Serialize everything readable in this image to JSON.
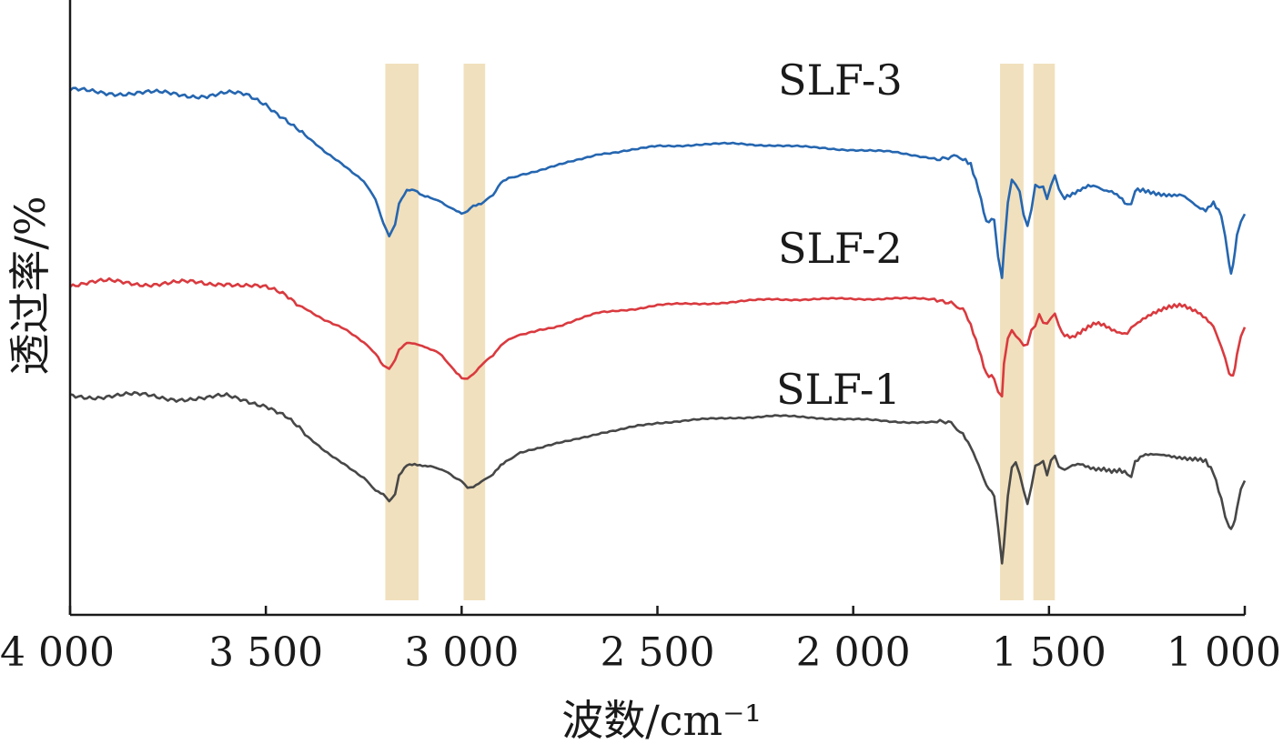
{
  "chart_data": {
    "type": "line",
    "title": "",
    "xlabel": "波数/cm⁻¹",
    "ylabel": "透过率/%",
    "xlim": [
      4000,
      1000
    ],
    "x_reversed": true,
    "xticks": [
      4000,
      3500,
      3000,
      2500,
      2000,
      1500,
      1000
    ],
    "xtick_labels": [
      "4 000",
      "3 500",
      "3 000",
      "2 500",
      "2 000",
      "1 500",
      "1 000"
    ],
    "ylim": [
      0,
      100
    ],
    "yticks_shown": false,
    "grid": false,
    "legend": "inline labels",
    "highlight_bands": [
      {
        "from": 3195,
        "to": 3110
      },
      {
        "from": 2995,
        "to": 2940
      },
      {
        "from": 1625,
        "to": 1565
      },
      {
        "from": 1540,
        "to": 1485
      }
    ],
    "series": [
      {
        "name": "SLF-3",
        "color": "#2566b0",
        "x": [
          4000,
          3900,
          3800,
          3700,
          3650,
          3600,
          3550,
          3500,
          3450,
          3400,
          3350,
          3300,
          3250,
          3220,
          3200,
          3185,
          3170,
          3160,
          3140,
          3120,
          3100,
          3080,
          3050,
          3020,
          3000,
          2985,
          2970,
          2950,
          2920,
          2900,
          2880,
          2850,
          2800,
          2750,
          2700,
          2650,
          2600,
          2550,
          2500,
          2400,
          2300,
          2200,
          2100,
          2000,
          1900,
          1800,
          1750,
          1720,
          1700,
          1680,
          1660,
          1640,
          1630,
          1620,
          1615,
          1605,
          1595,
          1585,
          1575,
          1565,
          1555,
          1545,
          1535,
          1525,
          1515,
          1505,
          1495,
          1485,
          1475,
          1460,
          1440,
          1420,
          1400,
          1380,
          1360,
          1340,
          1320,
          1300,
          1290,
          1280,
          1260,
          1240,
          1200,
          1160,
          1120,
          1100,
          1080,
          1060,
          1050,
          1040,
          1035,
          1030,
          1025,
          1020,
          1010,
          1000
        ],
        "y": [
          90.2,
          90.1,
          89.8,
          89.6,
          89.6,
          89.8,
          89.3,
          88.0,
          85.5,
          82.3,
          79.3,
          77.0,
          74.3,
          70.8,
          66.6,
          64.1,
          66.4,
          70.3,
          72.7,
          72.7,
          71.6,
          71.2,
          70.5,
          69.0,
          68.4,
          68.7,
          69.6,
          70.0,
          71.7,
          73.9,
          74.6,
          75.4,
          76.1,
          77.0,
          78.0,
          79.1,
          79.4,
          79.8,
          80.4,
          80.7,
          80.8,
          80.6,
          80.1,
          79.8,
          79.3,
          78.4,
          78.3,
          77.9,
          76.7,
          72.3,
          66.6,
          67.5,
          60.7,
          57.1,
          61.9,
          70.0,
          74.6,
          73.9,
          71.9,
          68.3,
          65.8,
          69.8,
          73.1,
          73.1,
          72.9,
          71.3,
          73.6,
          74.8,
          72.9,
          71.1,
          72.0,
          73.0,
          73.8,
          73.6,
          72.6,
          72.1,
          71.0,
          69.4,
          70.6,
          72.3,
          72.5,
          72.4,
          72.1,
          71.7,
          69.1,
          68.5,
          70.1,
          68.2,
          64.2,
          59.4,
          57.7,
          59.1,
          61.6,
          64.8,
          66.8,
          68.3
        ]
      },
      {
        "name": "SLF-2",
        "color": "#d93a3f",
        "x": [
          4000,
          3900,
          3800,
          3700,
          3650,
          3600,
          3550,
          3500,
          3450,
          3400,
          3350,
          3300,
          3250,
          3220,
          3200,
          3185,
          3170,
          3160,
          3140,
          3120,
          3100,
          3080,
          3050,
          3020,
          3000,
          2985,
          2970,
          2950,
          2920,
          2900,
          2880,
          2850,
          2800,
          2750,
          2700,
          2650,
          2600,
          2550,
          2500,
          2400,
          2300,
          2200,
          2100,
          2000,
          1900,
          1800,
          1750,
          1720,
          1700,
          1680,
          1660,
          1640,
          1630,
          1620,
          1615,
          1605,
          1595,
          1585,
          1575,
          1565,
          1555,
          1545,
          1535,
          1525,
          1515,
          1505,
          1495,
          1485,
          1475,
          1460,
          1440,
          1420,
          1400,
          1380,
          1360,
          1340,
          1320,
          1300,
          1290,
          1280,
          1260,
          1240,
          1200,
          1160,
          1120,
          1100,
          1080,
          1060,
          1050,
          1040,
          1035,
          1030,
          1025,
          1020,
          1010,
          1000
        ],
        "y": [
          55.8,
          56.1,
          56.0,
          55.9,
          55.8,
          56.2,
          55.6,
          54.9,
          53.8,
          51.6,
          49.4,
          47.7,
          45.3,
          43.6,
          41.3,
          40.8,
          42.3,
          44.0,
          45.2,
          45.0,
          44.6,
          44.1,
          43.0,
          40.6,
          39.2,
          39.0,
          39.7,
          41.4,
          42.9,
          44.7,
          45.9,
          46.6,
          47.7,
          48.4,
          49.5,
          50.6,
          51.1,
          51.5,
          52.0,
          52.3,
          52.6,
          53.1,
          53.1,
          53.1,
          53.3,
          53.0,
          52.8,
          51.5,
          48.7,
          44.8,
          40.1,
          39.4,
          36.4,
          35.5,
          40.9,
          46.6,
          47.5,
          46.7,
          45.5,
          44.7,
          45.5,
          47.4,
          48.5,
          49.8,
          49.5,
          48.6,
          49.9,
          50.1,
          48.5,
          47.1,
          46.5,
          47.1,
          47.8,
          48.4,
          48.1,
          47.5,
          47.2,
          47.3,
          47.9,
          49.0,
          49.9,
          50.5,
          51.2,
          51.7,
          51.0,
          50.1,
          48.7,
          44.9,
          42.4,
          39.8,
          39.4,
          39.6,
          41.0,
          43.2,
          46.5,
          48.1
        ]
      },
      {
        "name": "SLF-1",
        "color": "#474747",
        "x": [
          4000,
          3900,
          3800,
          3700,
          3650,
          3600,
          3550,
          3500,
          3450,
          3400,
          3350,
          3300,
          3250,
          3220,
          3200,
          3185,
          3170,
          3160,
          3140,
          3120,
          3100,
          3080,
          3050,
          3020,
          3000,
          2985,
          2970,
          2950,
          2920,
          2900,
          2880,
          2850,
          2800,
          2750,
          2700,
          2650,
          2600,
          2550,
          2500,
          2400,
          2300,
          2200,
          2100,
          2000,
          1900,
          1800,
          1750,
          1720,
          1700,
          1680,
          1660,
          1640,
          1630,
          1620,
          1615,
          1605,
          1595,
          1585,
          1575,
          1565,
          1555,
          1545,
          1535,
          1525,
          1515,
          1505,
          1495,
          1485,
          1475,
          1460,
          1440,
          1420,
          1400,
          1380,
          1360,
          1340,
          1320,
          1300,
          1290,
          1280,
          1260,
          1240,
          1200,
          1160,
          1120,
          1100,
          1080,
          1060,
          1050,
          1040,
          1035,
          1030,
          1025,
          1020,
          1010,
          1000
        ],
        "y": [
          35.8,
          35.9,
          35.8,
          35.4,
          35.2,
          35.7,
          35.2,
          34.3,
          32.0,
          28.8,
          26.1,
          23.8,
          21.1,
          18.9,
          18.1,
          17.1,
          18.4,
          21.5,
          23.5,
          23.7,
          23.5,
          23.4,
          22.7,
          21.2,
          20.5,
          19.3,
          19.7,
          20.5,
          22.0,
          23.6,
          24.6,
          25.7,
          26.4,
          27.5,
          28.4,
          29.1,
          29.6,
          30.5,
          31.1,
          31.5,
          32.0,
          32.2,
          32.0,
          31.6,
          31.3,
          31.1,
          30.6,
          29.4,
          26.9,
          23.4,
          19.5,
          17.6,
          12.6,
          5.4,
          9.6,
          17.8,
          23.6,
          23.3,
          22.1,
          18.9,
          16.9,
          19.5,
          23.0,
          24.0,
          24.1,
          22.1,
          23.6,
          25.5,
          23.1,
          22.2,
          23.0,
          23.4,
          23.1,
          23.0,
          23.2,
          22.8,
          22.8,
          22.0,
          21.7,
          23.7,
          24.8,
          25.0,
          25.3,
          25.2,
          24.7,
          24.1,
          21.8,
          16.9,
          14.3,
          12.4,
          12.3,
          12.9,
          13.6,
          15.7,
          19.1,
          20.7
        ]
      }
    ]
  }
}
